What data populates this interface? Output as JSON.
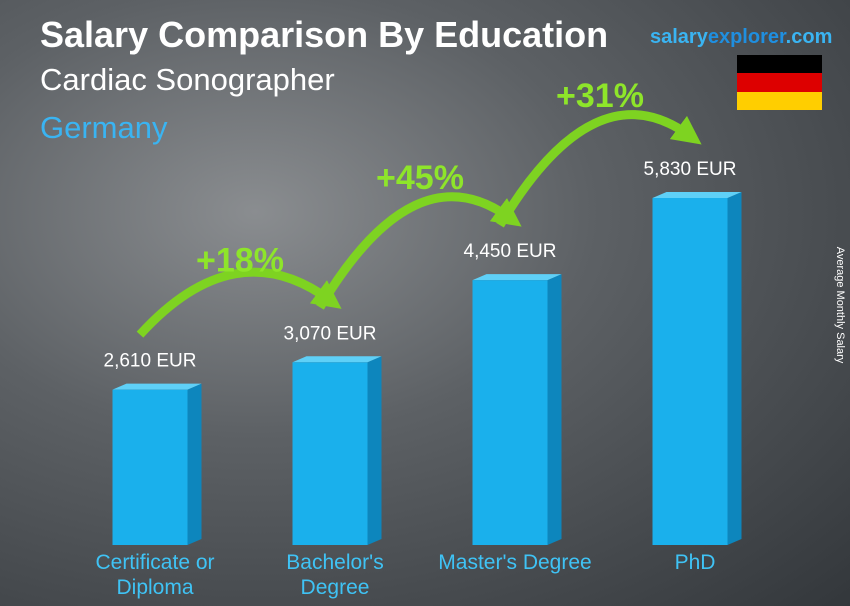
{
  "chart_data": {
    "type": "bar",
    "title": "Salary Comparison By Education",
    "subtitle": "Cardiac Sonographer",
    "location": "Germany",
    "brand": [
      "salary",
      "explorer",
      ".com"
    ],
    "y_axis_label": "Average Monthly Salary",
    "categories": [
      "Certificate or Diploma",
      "Bachelor's Degree",
      "Master's Degree",
      "PhD"
    ],
    "values": [
      2610,
      3070,
      4450,
      5830
    ],
    "value_labels": [
      "2,610 EUR",
      "3,070 EUR",
      "4,450 EUR",
      "5,830 EUR"
    ],
    "annotations": [
      "+18%",
      "+45%",
      "+31%"
    ],
    "color": "#1ab0ec"
  }
}
